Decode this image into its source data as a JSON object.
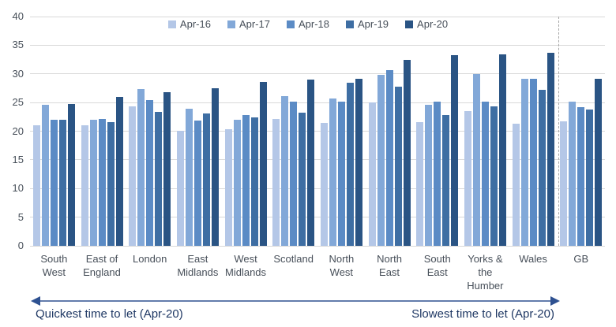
{
  "chart_data": {
    "type": "bar",
    "title": "",
    "categories": [
      "South West",
      "East of England",
      "London",
      "East Midlands",
      "West Midlands",
      "Scotland",
      "North West",
      "North East",
      "South East",
      "Yorks & the Humber",
      "Wales",
      "GB"
    ],
    "series": [
      {
        "name": "Apr-16",
        "color": "#b4c7e7",
        "values": [
          21.0,
          21.0,
          24.4,
          20.1,
          20.3,
          22.2,
          21.5,
          25.0,
          21.6,
          23.5,
          21.3,
          21.7
        ]
      },
      {
        "name": "Apr-17",
        "color": "#82a8d8",
        "values": [
          24.6,
          22.0,
          27.4,
          23.9,
          22.0,
          26.1,
          25.7,
          29.8,
          24.6,
          29.9,
          29.1,
          25.2
        ]
      },
      {
        "name": "Apr-18",
        "color": "#5b8bc5",
        "values": [
          22.0,
          22.1,
          25.4,
          21.9,
          22.8,
          25.1,
          25.1,
          30.6,
          25.2,
          25.1,
          29.1,
          24.2
        ]
      },
      {
        "name": "Apr-19",
        "color": "#3e6ea3",
        "values": [
          22.0,
          21.6,
          23.4,
          23.1,
          22.4,
          23.3,
          28.4,
          27.8,
          22.8,
          24.4,
          27.2,
          23.8
        ]
      },
      {
        "name": "Apr-20",
        "color": "#2a5484",
        "values": [
          24.7,
          26.0,
          26.8,
          27.5,
          28.6,
          29.0,
          29.2,
          32.5,
          33.2,
          33.4,
          33.7,
          29.2
        ]
      }
    ],
    "ylim": [
      0,
      40
    ],
    "yticks": [
      0,
      5,
      10,
      15,
      20,
      25,
      30,
      35,
      40
    ],
    "grid": true,
    "legend_position": "top",
    "separator": {
      "after_category": "Wales",
      "style": "dashed"
    },
    "annotations": {
      "left": "Quickest time to let (Apr-20)",
      "right": "Slowest time to let (Apr-20)"
    }
  },
  "colors": {
    "gridline": "#d9d9d9",
    "axis_text": "#474f59",
    "separator": "#a6a6a6",
    "arrow": "#2e5191",
    "annotation_text": "#1f3864"
  }
}
